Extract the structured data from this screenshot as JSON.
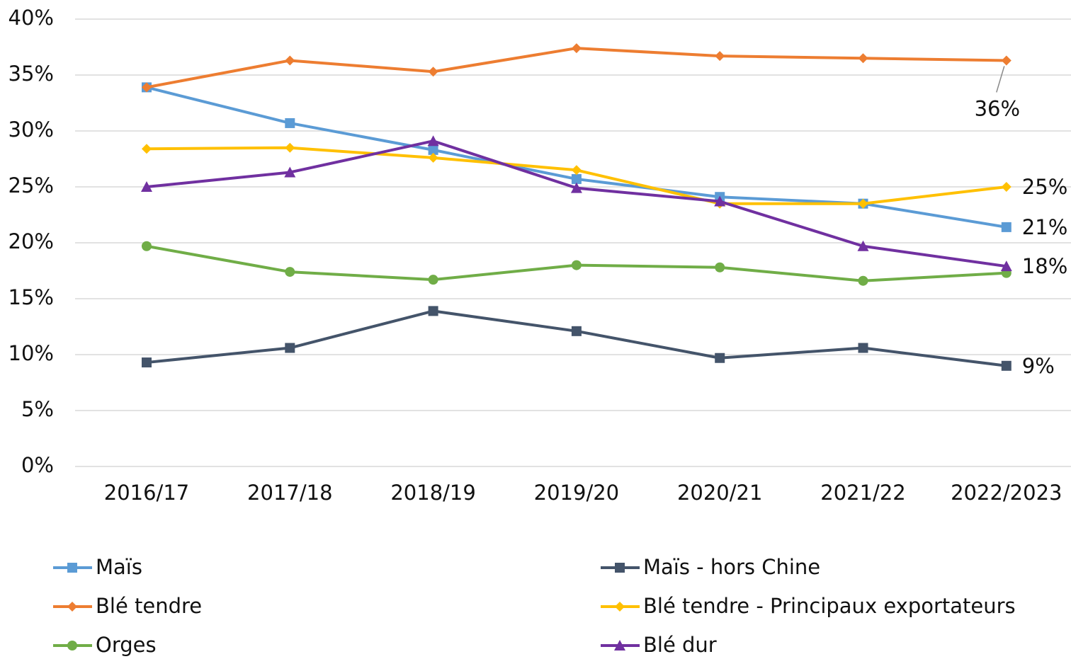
{
  "chart_data": {
    "type": "line",
    "categories": [
      "2016/17",
      "2017/18",
      "2018/19",
      "2019/20",
      "2020/21",
      "2021/22",
      "2022/2023"
    ],
    "ylim": [
      0,
      40
    ],
    "yticks": [
      {
        "value": 0,
        "label": "0%"
      },
      {
        "value": 5,
        "label": "5%"
      },
      {
        "value": 10,
        "label": "10%"
      },
      {
        "value": 15,
        "label": "15%"
      },
      {
        "value": 20,
        "label": "20%"
      },
      {
        "value": 25,
        "label": "25%"
      },
      {
        "value": 30,
        "label": "30%"
      },
      {
        "value": 35,
        "label": "35%"
      },
      {
        "value": 40,
        "label": "40%"
      }
    ],
    "grid": true,
    "legend": "bottom",
    "series": [
      {
        "name": "Maïs",
        "color": "#5b9bd5",
        "marker": "square",
        "values": [
          33.9,
          30.7,
          28.3,
          25.7,
          24.1,
          23.5,
          21.4
        ],
        "value_labels": [
          null,
          null,
          null,
          null,
          null,
          null,
          "21%"
        ]
      },
      {
        "name": "Maïs - hors Chine",
        "color": "#44546a",
        "marker": "square",
        "values": [
          9.3,
          10.6,
          13.9,
          12.1,
          9.7,
          10.6,
          9.0
        ],
        "value_labels": [
          null,
          null,
          null,
          null,
          null,
          null,
          "9%"
        ]
      },
      {
        "name": "Blé tendre",
        "color": "#ed7d31",
        "marker": "diamond",
        "values": [
          33.9,
          36.3,
          35.3,
          37.4,
          36.7,
          36.5,
          36.3
        ],
        "value_labels": [
          null,
          null,
          null,
          null,
          null,
          null,
          "36%"
        ]
      },
      {
        "name": "Blé tendre - Principaux exportateurs",
        "color": "#ffc000",
        "marker": "diamond",
        "values": [
          28.4,
          28.5,
          27.6,
          26.5,
          23.5,
          23.5,
          25.0
        ],
        "value_labels": [
          null,
          null,
          null,
          null,
          null,
          null,
          "25%"
        ]
      },
      {
        "name": "Orges",
        "color": "#70ad47",
        "marker": "circle",
        "values": [
          19.7,
          17.4,
          16.7,
          18.0,
          17.8,
          16.6,
          17.3
        ]
      },
      {
        "name": "Blé dur",
        "color": "#7030a0",
        "marker": "triangle",
        "values": [
          25.0,
          26.3,
          29.1,
          24.9,
          23.7,
          19.7,
          17.9
        ],
        "value_labels": [
          null,
          null,
          null,
          null,
          null,
          null,
          "18%"
        ]
      }
    ]
  }
}
